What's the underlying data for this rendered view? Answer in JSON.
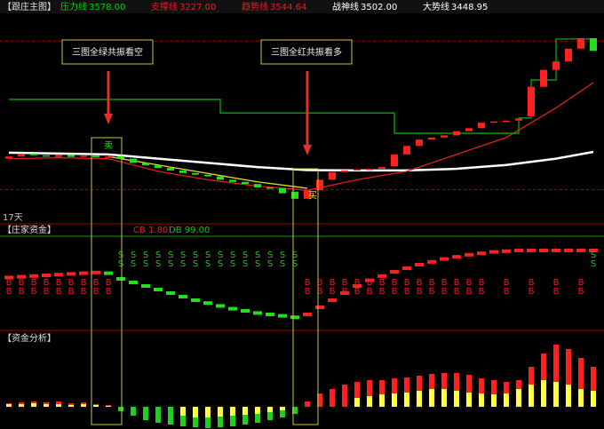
{
  "chart_data": {
    "type": "candlestick",
    "title": "【跟庄主图】",
    "indicators": [
      {
        "name": "压力线",
        "value": 3578,
        "value_label": "3578.00",
        "color": "#00d000"
      },
      {
        "name": "支撑线",
        "value": 3227,
        "value_label": "3227.00",
        "color": "#e02020"
      },
      {
        "name": "趋势线",
        "value": 3544.64,
        "value_label": "3544.64",
        "color": "#e02020"
      },
      {
        "name": "战神线",
        "value": 3502,
        "value_label": "3502.00",
        "color": "#ffffff"
      },
      {
        "name": "大势线",
        "value": 3448.95,
        "value_label": "3448.95",
        "color": "#ffffff"
      }
    ],
    "ylim": [
      3150,
      3650
    ],
    "open": [
      3300,
      3305,
      3312,
      3308,
      3304,
      3309,
      3306,
      3307,
      3303,
      3306,
      3300,
      3290,
      3284,
      3278,
      3272,
      3266,
      3262,
      3258,
      3250,
      3245,
      3240,
      3232,
      3230,
      3222,
      3205,
      3225,
      3250,
      3268,
      3272,
      3275,
      3276,
      3282,
      3310,
      3330,
      3345,
      3350,
      3355,
      3365,
      3372,
      3385,
      3388,
      3390,
      3400,
      3470,
      3510,
      3530,
      3560,
      3585
    ],
    "close": [
      3305,
      3310,
      3308,
      3306,
      3309,
      3304,
      3307,
      3303,
      3305,
      3300,
      3290,
      3284,
      3278,
      3272,
      3266,
      3262,
      3258,
      3250,
      3245,
      3240,
      3232,
      3230,
      3218,
      3205,
      3225,
      3250,
      3268,
      3272,
      3275,
      3276,
      3280,
      3310,
      3330,
      3345,
      3350,
      3355,
      3365,
      3372,
      3385,
      3388,
      3390,
      3395,
      3470,
      3510,
      3530,
      3560,
      3585,
      3555
    ],
    "lines": [
      {
        "color": "#ffffff",
        "x": [
          0,
          4,
          8,
          12,
          16,
          20,
          24,
          28,
          32,
          36,
          40,
          44,
          47
        ],
        "values": [
          3314,
          3312,
          3310,
          3300,
          3290,
          3280,
          3273,
          3272,
          3272,
          3276,
          3285,
          3300,
          3316
        ]
      },
      {
        "color": "#e02020",
        "x": [
          0,
          4,
          8,
          12,
          16,
          20,
          24,
          28,
          32,
          36,
          40,
          44,
          47
        ],
        "values": [
          3300,
          3302,
          3300,
          3270,
          3250,
          3235,
          3225,
          3250,
          3270,
          3310,
          3350,
          3420,
          3480
        ]
      },
      {
        "color": "#e0e020",
        "x": [
          8,
          12,
          16,
          20,
          24
        ],
        "values": [
          3305,
          3285,
          3265,
          3245,
          3230
        ]
      },
      {
        "color": "#00b000",
        "x": [
          0,
          16,
          17,
          29,
          31,
          39,
          41,
          42,
          44,
          47
        ],
        "values": [
          3440,
          3440,
          3408,
          3408,
          3360,
          3360,
          3396,
          3486,
          3583,
          3583
        ]
      }
    ],
    "sell_text": "卖",
    "sell_index": 8,
    "buy_text": "买",
    "buy_index": 24,
    "days_label": "17天",
    "annotations": [
      {
        "text": "三图全绿共振看空",
        "index": 8
      },
      {
        "text": "三图全红共振看多",
        "index": 24
      }
    ],
    "fund_panel": {
      "title": "【庄家资金】",
      "cb": "CB 1.80",
      "db": "DB 99.00",
      "ylim": [
        0,
        100
      ],
      "values": [
        62,
        63,
        64,
        65,
        66,
        67,
        68,
        69,
        68,
        60,
        55,
        50,
        45,
        40,
        35,
        30,
        26,
        22,
        18,
        15,
        12,
        10,
        8,
        6,
        10,
        20,
        30,
        40,
        50,
        58,
        64,
        70,
        75,
        80,
        84,
        88,
        91,
        94,
        96,
        98,
        99,
        100,
        100,
        100,
        100,
        100,
        100,
        100
      ],
      "sell_letter": "S",
      "sell_signals": [
        9,
        10,
        11,
        12,
        13,
        14,
        15,
        16,
        17,
        18,
        19,
        20,
        21,
        22,
        23,
        47
      ],
      "buy_letter": "B",
      "buy_signals": [
        0,
        1,
        2,
        3,
        4,
        5,
        6,
        7,
        8,
        24,
        25,
        26,
        27,
        28,
        29,
        30,
        31,
        32,
        33,
        34,
        35,
        36,
        37,
        38,
        40,
        42,
        44,
        46
      ]
    },
    "analysis_panel": {
      "title": "【资金分析】",
      "values": [
        4,
        5,
        6,
        5,
        6,
        4,
        5,
        3,
        2,
        -5,
        -10,
        -15,
        -18,
        -20,
        -22,
        -23,
        -24,
        -23,
        -22,
        -20,
        -18,
        -15,
        -12,
        -8,
        6,
        15,
        20,
        25,
        28,
        30,
        30,
        32,
        33,
        35,
        37,
        38,
        38,
        36,
        32,
        30,
        28,
        30,
        45,
        60,
        70,
        65,
        55,
        45
      ],
      "yellow": [
        3,
        3,
        4,
        3,
        3,
        2,
        3,
        2,
        1,
        null,
        null,
        null,
        null,
        null,
        -10,
        -12,
        -12,
        -11,
        -10,
        -9,
        -8,
        -6,
        -4,
        null,
        null,
        null,
        null,
        null,
        10,
        12,
        14,
        15,
        16,
        18,
        20,
        20,
        18,
        16,
        15,
        14,
        15,
        20,
        25,
        30,
        28,
        25,
        20,
        18
      ]
    }
  }
}
